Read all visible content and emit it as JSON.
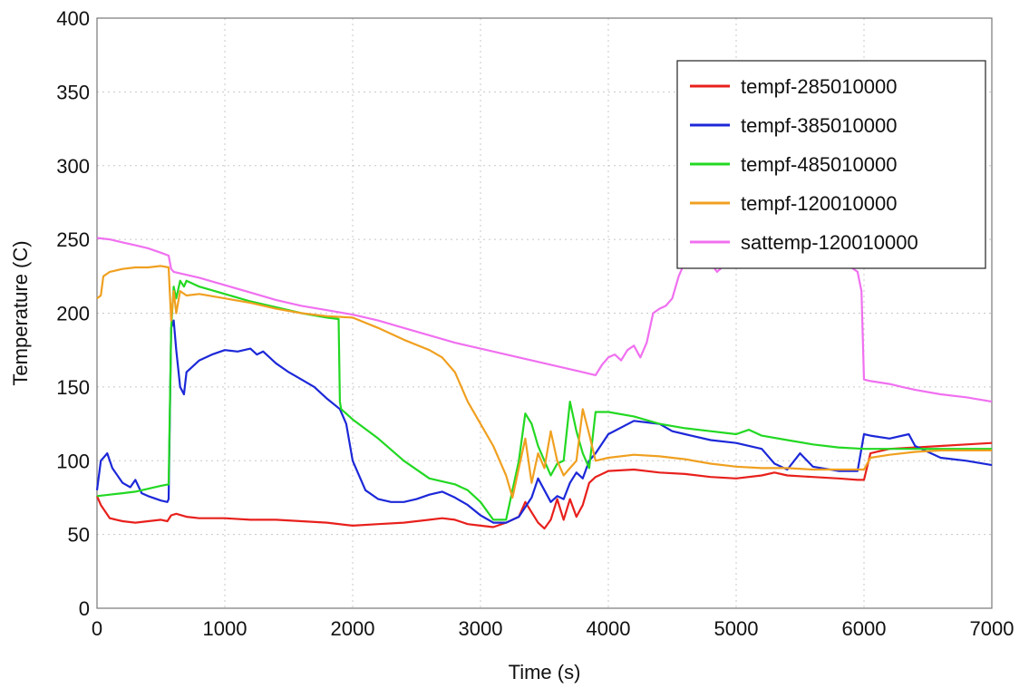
{
  "chart_data": {
    "type": "line",
    "xlabel": "Time (s)",
    "ylabel": "Temperature (C)",
    "xlim": [
      0,
      7000
    ],
    "ylim": [
      0,
      400
    ],
    "xticks": [
      0,
      1000,
      2000,
      3000,
      4000,
      5000,
      6000,
      7000
    ],
    "yticks": [
      0,
      50,
      100,
      150,
      200,
      250,
      300,
      350,
      400
    ],
    "grid": true,
    "legend_position": "top-right",
    "series": [
      {
        "name": "tempf-285010000",
        "color": "#e8201c",
        "x": [
          0,
          30,
          100,
          200,
          300,
          400,
          500,
          550,
          580,
          620,
          700,
          800,
          1000,
          1200,
          1400,
          1600,
          1800,
          2000,
          2200,
          2400,
          2600,
          2700,
          2800,
          2900,
          3000,
          3100,
          3200,
          3300,
          3350,
          3400,
          3450,
          3500,
          3550,
          3600,
          3650,
          3700,
          3750,
          3800,
          3850,
          3900,
          4000,
          4200,
          4400,
          4600,
          4800,
          5000,
          5200,
          5300,
          5400,
          5600,
          5800,
          5950,
          6000,
          6050,
          6200,
          6400,
          6600,
          6800,
          7000
        ],
        "y": [
          76,
          70,
          61,
          59,
          58,
          59,
          60,
          59,
          63,
          64,
          62,
          61,
          61,
          60,
          60,
          59,
          58,
          56,
          57,
          58,
          60,
          61,
          60,
          57,
          56,
          55,
          58,
          62,
          72,
          65,
          58,
          54,
          60,
          74,
          60,
          74,
          62,
          70,
          85,
          89,
          93,
          94,
          92,
          91,
          89,
          88,
          90,
          92,
          90,
          89,
          88,
          87,
          87,
          105,
          108,
          109,
          110,
          111,
          112
        ]
      },
      {
        "name": "tempf-385010000",
        "color": "#1c28d8",
        "x": [
          0,
          30,
          80,
          120,
          200,
          260,
          300,
          350,
          400,
          500,
          550,
          560,
          580,
          600,
          620,
          650,
          680,
          700,
          800,
          900,
          1000,
          1100,
          1200,
          1250,
          1300,
          1400,
          1500,
          1600,
          1700,
          1800,
          1900,
          1950,
          2000,
          2100,
          2200,
          2300,
          2400,
          2500,
          2600,
          2700,
          2800,
          2900,
          3000,
          3100,
          3200,
          3300,
          3400,
          3450,
          3500,
          3550,
          3600,
          3650,
          3700,
          3750,
          3800,
          3850,
          3900,
          4000,
          4200,
          4400,
          4500,
          4600,
          4800,
          5000,
          5200,
          5300,
          5400,
          5500,
          5600,
          5800,
          5950,
          6000,
          6050,
          6200,
          6350,
          6400,
          6600,
          6800,
          7000
        ],
        "y": [
          80,
          100,
          105,
          95,
          85,
          82,
          87,
          78,
          76,
          73,
          72,
          74,
          190,
          195,
          175,
          150,
          145,
          160,
          168,
          172,
          175,
          174,
          176,
          172,
          174,
          166,
          160,
          155,
          150,
          142,
          135,
          125,
          100,
          80,
          74,
          72,
          72,
          74,
          77,
          79,
          75,
          70,
          63,
          58,
          58,
          62,
          75,
          88,
          80,
          72,
          76,
          74,
          85,
          92,
          88,
          100,
          105,
          118,
          127,
          125,
          120,
          118,
          114,
          112,
          108,
          98,
          94,
          105,
          96,
          93,
          93,
          118,
          117,
          115,
          118,
          110,
          102,
          100,
          97
        ]
      },
      {
        "name": "tempf-485010000",
        "color": "#22d822",
        "x": [
          0,
          100,
          200,
          300,
          400,
          500,
          560,
          580,
          600,
          620,
          650,
          680,
          700,
          800,
          1000,
          1200,
          1400,
          1600,
          1800,
          1890,
          1900,
          1910,
          2000,
          2200,
          2400,
          2600,
          2800,
          2900,
          3000,
          3100,
          3200,
          3300,
          3350,
          3400,
          3450,
          3500,
          3550,
          3600,
          3650,
          3700,
          3750,
          3800,
          3850,
          3900,
          4000,
          4200,
          4400,
          4600,
          4800,
          5000,
          5100,
          5200,
          5400,
          5600,
          5800,
          6000,
          6200,
          6400,
          6600,
          6800,
          7000
        ],
        "y": [
          76,
          77,
          78,
          79,
          81,
          83,
          84,
          190,
          218,
          210,
          222,
          218,
          222,
          218,
          213,
          208,
          204,
          200,
          197,
          196,
          140,
          135,
          128,
          115,
          100,
          88,
          84,
          80,
          72,
          60,
          60,
          100,
          132,
          125,
          110,
          100,
          90,
          98,
          100,
          140,
          120,
          105,
          95,
          133,
          133,
          130,
          125,
          122,
          120,
          118,
          121,
          117,
          114,
          111,
          109,
          108,
          108,
          108,
          108,
          108,
          108
        ]
      },
      {
        "name": "tempf-120010000",
        "color": "#f0a020",
        "x": [
          0,
          30,
          50,
          100,
          200,
          300,
          400,
          500,
          560,
          580,
          600,
          620,
          650,
          700,
          800,
          1000,
          1200,
          1400,
          1600,
          1800,
          2000,
          2200,
          2400,
          2600,
          2700,
          2800,
          2850,
          2900,
          3000,
          3100,
          3200,
          3250,
          3300,
          3350,
          3400,
          3450,
          3500,
          3550,
          3600,
          3650,
          3700,
          3750,
          3800,
          3850,
          3900,
          4000,
          4200,
          4400,
          4600,
          4800,
          5000,
          5200,
          5400,
          5600,
          5800,
          6000,
          6050,
          6200,
          6400,
          6600,
          6800,
          7000
        ],
        "y": [
          210,
          212,
          225,
          228,
          230,
          231,
          231,
          232,
          231,
          195,
          215,
          200,
          215,
          212,
          213,
          210,
          207,
          203,
          200,
          198,
          197,
          190,
          182,
          175,
          170,
          160,
          150,
          140,
          125,
          110,
          90,
          75,
          95,
          115,
          85,
          105,
          95,
          120,
          100,
          90,
          95,
          100,
          135,
          118,
          100,
          102,
          104,
          103,
          101,
          98,
          96,
          95,
          95,
          94,
          94,
          94,
          102,
          104,
          106,
          107,
          107,
          107
        ]
      },
      {
        "name": "sattemp-120010000",
        "color": "#f070f0",
        "x": [
          0,
          100,
          200,
          300,
          400,
          500,
          560,
          580,
          600,
          800,
          1000,
          1200,
          1400,
          1600,
          1800,
          2000,
          2200,
          2400,
          2600,
          2800,
          3000,
          3200,
          3400,
          3600,
          3800,
          3900,
          3950,
          4000,
          4050,
          4100,
          4150,
          4200,
          4250,
          4300,
          4350,
          4400,
          4450,
          4500,
          4550,
          4600,
          4700,
          4800,
          4850,
          4900,
          5000,
          5100,
          5200,
          5400,
          5600,
          5800,
          5900,
          5950,
          5980,
          6000,
          6050,
          6200,
          6300,
          6400,
          6600,
          6800,
          7000
        ],
        "y": [
          251,
          250,
          248,
          246,
          244,
          241,
          239,
          230,
          228,
          224,
          219,
          214,
          209,
          205,
          202,
          199,
          195,
          190,
          185,
          180,
          176,
          172,
          168,
          164,
          160,
          158,
          165,
          170,
          172,
          168,
          175,
          178,
          170,
          180,
          200,
          203,
          205,
          210,
          225,
          235,
          236,
          234,
          228,
          232,
          236,
          235,
          234,
          233,
          232,
          231,
          231,
          228,
          215,
          155,
          154,
          152,
          150,
          148,
          145,
          143,
          140
        ]
      }
    ]
  }
}
